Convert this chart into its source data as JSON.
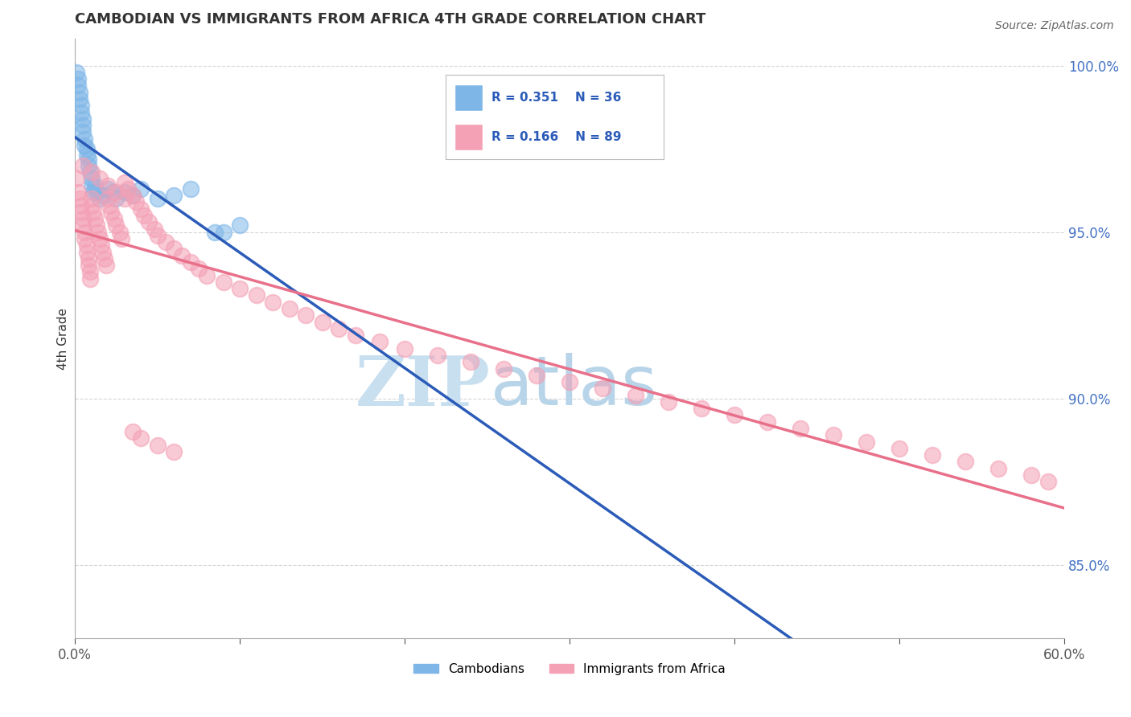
{
  "title": "CAMBODIAN VS IMMIGRANTS FROM AFRICA 4TH GRADE CORRELATION CHART",
  "source": "Source: ZipAtlas.com",
  "ylabel": "4th Grade",
  "x_min": 0.0,
  "x_max": 0.6,
  "y_min": 0.828,
  "y_max": 1.008,
  "y_ticks": [
    0.85,
    0.9,
    0.95,
    1.0
  ],
  "y_tick_labels": [
    "85.0%",
    "90.0%",
    "95.0%",
    "100.0%"
  ],
  "legend_R_cambodian": "R = 0.351",
  "legend_N_cambodian": "N = 36",
  "legend_R_africa": "R = 0.166",
  "legend_N_africa": "N = 89",
  "color_cambodian": "#7EB6E8",
  "color_africa": "#F4A0B5",
  "color_line_cambodian": "#2B5BB8",
  "color_line_africa": "#E8708A",
  "watermark_ZIP": "ZIP",
  "watermark_atlas": "atlas",
  "watermark_color_ZIP": "#C8DFF0",
  "watermark_color_atlas": "#B8D4E8",
  "legend_label_cambodian": "Cambodians",
  "legend_label_africa": "Immigrants from Africa",
  "cambodian_x": [
    0.001,
    0.002,
    0.002,
    0.003,
    0.003,
    0.004,
    0.004,
    0.005,
    0.005,
    0.005,
    0.006,
    0.006,
    0.007,
    0.007,
    0.008,
    0.008,
    0.009,
    0.01,
    0.01,
    0.011,
    0.012,
    0.013,
    0.015,
    0.017,
    0.02,
    0.023,
    0.025,
    0.03,
    0.035,
    0.04,
    0.05,
    0.06,
    0.07,
    0.085,
    0.09,
    0.1
  ],
  "cambodian_y": [
    0.998,
    0.996,
    0.994,
    0.992,
    0.99,
    0.988,
    0.986,
    0.984,
    0.982,
    0.98,
    0.978,
    0.976,
    0.975,
    0.973,
    0.972,
    0.97,
    0.968,
    0.966,
    0.964,
    0.962,
    0.964,
    0.962,
    0.96,
    0.961,
    0.963,
    0.962,
    0.96,
    0.962,
    0.961,
    0.963,
    0.96,
    0.961,
    0.963,
    0.95,
    0.95,
    0.952
  ],
  "africa_x": [
    0.001,
    0.002,
    0.003,
    0.004,
    0.004,
    0.005,
    0.005,
    0.006,
    0.006,
    0.007,
    0.007,
    0.008,
    0.008,
    0.009,
    0.009,
    0.01,
    0.01,
    0.011,
    0.012,
    0.013,
    0.014,
    0.015,
    0.016,
    0.017,
    0.018,
    0.019,
    0.02,
    0.021,
    0.022,
    0.024,
    0.025,
    0.027,
    0.028,
    0.03,
    0.032,
    0.035,
    0.037,
    0.04,
    0.042,
    0.045,
    0.048,
    0.05,
    0.055,
    0.06,
    0.065,
    0.07,
    0.075,
    0.08,
    0.09,
    0.1,
    0.11,
    0.12,
    0.13,
    0.14,
    0.15,
    0.16,
    0.17,
    0.185,
    0.2,
    0.22,
    0.24,
    0.26,
    0.28,
    0.3,
    0.32,
    0.34,
    0.36,
    0.38,
    0.4,
    0.42,
    0.44,
    0.46,
    0.48,
    0.5,
    0.52,
    0.54,
    0.56,
    0.58,
    0.59,
    0.005,
    0.01,
    0.015,
    0.02,
    0.025,
    0.03,
    0.035,
    0.04,
    0.05,
    0.06
  ],
  "africa_y": [
    0.966,
    0.962,
    0.96,
    0.958,
    0.956,
    0.954,
    0.952,
    0.95,
    0.948,
    0.946,
    0.944,
    0.942,
    0.94,
    0.938,
    0.936,
    0.96,
    0.958,
    0.956,
    0.954,
    0.952,
    0.95,
    0.948,
    0.946,
    0.944,
    0.942,
    0.94,
    0.96,
    0.958,
    0.956,
    0.954,
    0.952,
    0.95,
    0.948,
    0.965,
    0.963,
    0.961,
    0.959,
    0.957,
    0.955,
    0.953,
    0.951,
    0.949,
    0.947,
    0.945,
    0.943,
    0.941,
    0.939,
    0.937,
    0.935,
    0.933,
    0.931,
    0.929,
    0.927,
    0.925,
    0.923,
    0.921,
    0.919,
    0.917,
    0.915,
    0.913,
    0.911,
    0.909,
    0.907,
    0.905,
    0.903,
    0.901,
    0.899,
    0.897,
    0.895,
    0.893,
    0.891,
    0.889,
    0.887,
    0.885,
    0.883,
    0.881,
    0.879,
    0.877,
    0.875,
    0.97,
    0.968,
    0.966,
    0.964,
    0.962,
    0.96,
    0.89,
    0.888,
    0.886,
    0.884
  ]
}
